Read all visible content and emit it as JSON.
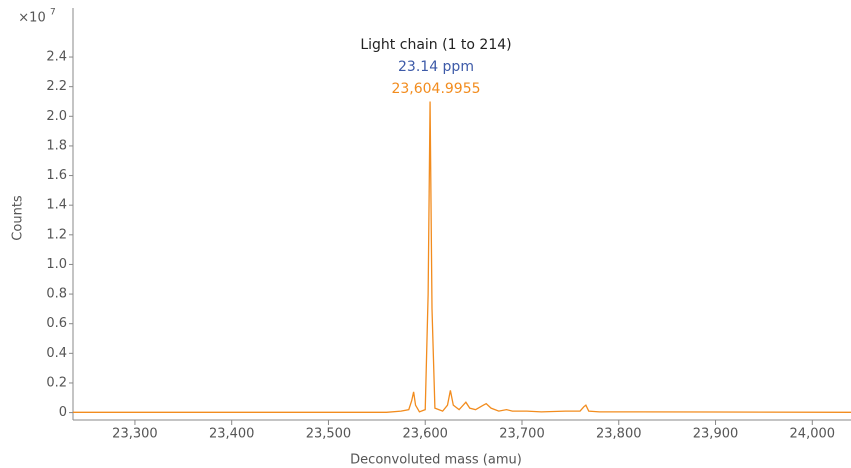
{
  "chart_data": {
    "type": "line",
    "y_multiplier": "×10",
    "y_multiplier_exponent": "7",
    "ylabel": "Counts",
    "xlabel": "Deconvoluted mass (amu)",
    "annotations": [
      {
        "text": "Light chain (1 to 214)",
        "color": "#222222"
      },
      {
        "text": "23.14 ppm",
        "color": "#3d5aa8"
      },
      {
        "text": "23,604.9955",
        "color": "#f28c1e"
      }
    ],
    "xlim": [
      23236,
      24040
    ],
    "ylim": [
      -0.05,
      2.65
    ],
    "xticks": [
      {
        "value": 23300,
        "label": "23,300"
      },
      {
        "value": 23400,
        "label": "23,400"
      },
      {
        "value": 23500,
        "label": "23,500"
      },
      {
        "value": 23600,
        "label": "23,600"
      },
      {
        "value": 23700,
        "label": "23,700"
      },
      {
        "value": 23800,
        "label": "23,800"
      },
      {
        "value": 23900,
        "label": "23,900"
      },
      {
        "value": 24000,
        "label": "24,000"
      }
    ],
    "yticks": [
      0,
      0.2,
      0.4,
      0.6,
      0.8,
      {
        "value": 1,
        "label": "1.0"
      },
      1.2,
      1.4,
      1.6,
      1.8,
      {
        "value": 2,
        "label": "2.0"
      },
      2.2,
      2.4
    ],
    "series": [
      {
        "color": "#f28c1e",
        "x": [
          23236,
          23560,
          23575,
          23583,
          23586,
          23588,
          23590,
          23594,
          23600,
          23603,
          23605,
          23607,
          23610,
          23618,
          23623,
          23626,
          23629,
          23635,
          23642,
          23646,
          23652,
          23660,
          23663,
          23668,
          23676,
          23684,
          23690,
          23705,
          23720,
          23745,
          23760,
          23764,
          23766,
          23769,
          23780,
          23820,
          23900,
          24040
        ],
        "values": [
          0.002,
          0.002,
          0.01,
          0.02,
          0.08,
          0.14,
          0.05,
          0.005,
          0.02,
          0.8,
          2.1,
          0.7,
          0.03,
          0.01,
          0.05,
          0.15,
          0.05,
          0.02,
          0.07,
          0.03,
          0.02,
          0.05,
          0.06,
          0.03,
          0.01,
          0.02,
          0.01,
          0.01,
          0.005,
          0.01,
          0.01,
          0.04,
          0.05,
          0.01,
          0.005,
          0.005,
          0.004,
          0.002
        ]
      }
    ]
  }
}
